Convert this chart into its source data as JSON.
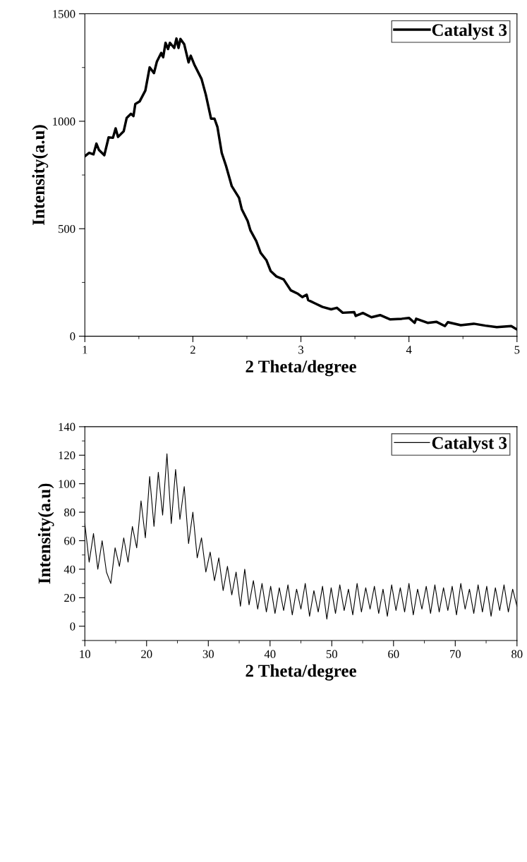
{
  "chart_data": [
    {
      "type": "line",
      "xlabel": "2 Theta/degree",
      "ylabel": "Intensity(a.u)",
      "xlim": [
        1,
        5
      ],
      "ylim": [
        0,
        1500
      ],
      "xticks": [
        1,
        2,
        3,
        4,
        5
      ],
      "yticks": [
        0,
        500,
        1000,
        1500
      ],
      "legend": "top right",
      "series": [
        {
          "name": "Catalyst 3",
          "color": "#000000",
          "x": [
            1.0,
            1.04,
            1.08,
            1.107,
            1.13,
            1.18,
            1.22,
            1.26,
            1.285,
            1.307,
            1.36,
            1.387,
            1.427,
            1.45,
            1.467,
            1.507,
            1.56,
            1.6,
            1.64,
            1.667,
            1.707,
            1.725,
            1.747,
            1.77,
            1.787,
            1.827,
            1.848,
            1.867,
            1.885,
            1.92,
            1.96,
            1.98,
            2.013,
            2.08,
            2.12,
            2.168,
            2.2,
            2.227,
            2.267,
            2.307,
            2.36,
            2.427,
            2.453,
            2.507,
            2.533,
            2.587,
            2.627,
            2.68,
            2.72,
            2.773,
            2.84,
            2.907,
            2.973,
            3.013,
            3.053,
            3.067,
            3.133,
            3.2,
            3.28,
            3.333,
            3.387,
            3.493,
            3.507,
            3.573,
            3.653,
            3.733,
            3.827,
            3.933,
            4.0,
            4.053,
            4.067,
            4.173,
            4.253,
            4.333,
            4.36,
            4.48,
            4.6,
            4.707,
            4.813,
            4.947,
            5.0
          ],
          "values": [
            837,
            853,
            846,
            896,
            867,
            842,
            925,
            923,
            967,
            927,
            954,
            1015,
            1035,
            1024,
            1080,
            1092,
            1143,
            1251,
            1224,
            1278,
            1318,
            1298,
            1365,
            1336,
            1365,
            1341,
            1385,
            1341,
            1383,
            1358,
            1274,
            1305,
            1264,
            1197,
            1123,
            1012,
            1012,
            974,
            853,
            792,
            698,
            644,
            590,
            536,
            492,
            442,
            388,
            354,
            303,
            278,
            264,
            213,
            197,
            182,
            193,
            168,
            152,
            136,
            125,
            132,
            109,
            112,
            94,
            108,
            88,
            98,
            78,
            81,
            85,
            62,
            81,
            62,
            67,
            47,
            65,
            51,
            58,
            49,
            42,
            47,
            31
          ]
        }
      ]
    },
    {
      "type": "line",
      "xlabel": "2 Theta/degree",
      "ylabel": "Intensity(a.u)",
      "xlim": [
        10,
        80
      ],
      "ylim": [
        -10,
        140
      ],
      "xticks": [
        10,
        20,
        30,
        40,
        50,
        60,
        70,
        80
      ],
      "yticks": [
        0,
        20,
        40,
        60,
        80,
        100,
        120,
        140
      ],
      "legend": "top right",
      "series": [
        {
          "name": "Catalyst 3",
          "color": "#000000",
          "x": [
            10.0,
            10.7,
            11.4,
            12.1,
            12.8,
            13.5,
            14.2,
            14.9,
            15.6,
            16.3,
            17.0,
            17.7,
            18.4,
            19.1,
            19.8,
            20.5,
            21.2,
            21.9,
            22.6,
            23.3,
            24.0,
            24.7,
            25.4,
            26.1,
            26.8,
            27.5,
            28.2,
            28.9,
            29.6,
            30.3,
            31.0,
            31.7,
            32.4,
            33.1,
            33.8,
            34.5,
            35.2,
            35.9,
            36.6,
            37.3,
            38.0,
            38.7,
            39.4,
            40.1,
            40.8,
            41.5,
            42.2,
            42.9,
            43.6,
            44.3,
            45.0,
            45.7,
            46.4,
            47.1,
            47.8,
            48.5,
            49.2,
            49.9,
            50.6,
            51.3,
            52.0,
            52.7,
            53.4,
            54.1,
            54.8,
            55.5,
            56.2,
            56.9,
            57.6,
            58.3,
            59.0,
            59.7,
            60.4,
            61.1,
            61.8,
            62.5,
            63.2,
            63.9,
            64.6,
            65.3,
            66.0,
            66.7,
            67.4,
            68.1,
            68.8,
            69.5,
            70.2,
            70.9,
            71.6,
            72.3,
            73.0,
            73.7,
            74.4,
            75.1,
            75.8,
            76.5,
            77.2,
            77.9,
            78.6,
            79.3,
            80.0
          ],
          "values": [
            72,
            45,
            65,
            40,
            60,
            38,
            30,
            55,
            42,
            62,
            45,
            70,
            55,
            88,
            62,
            105,
            70,
            108,
            78,
            121,
            72,
            110,
            75,
            98,
            58,
            80,
            48,
            62,
            38,
            52,
            32,
            48,
            25,
            42,
            22,
            38,
            14,
            40,
            15,
            32,
            12,
            30,
            10,
            28,
            9,
            27,
            11,
            29,
            8,
            26,
            12,
            30,
            7,
            25,
            10,
            28,
            5,
            27,
            9,
            29,
            11,
            26,
            8,
            30,
            10,
            27,
            12,
            28,
            9,
            26,
            7,
            29,
            11,
            27,
            10,
            30,
            8,
            26,
            12,
            28,
            9,
            29,
            10,
            27,
            11,
            28,
            8,
            30,
            12,
            26,
            9,
            29,
            10,
            28,
            7,
            27,
            11,
            29,
            10,
            26,
            14
          ]
        }
      ]
    }
  ]
}
